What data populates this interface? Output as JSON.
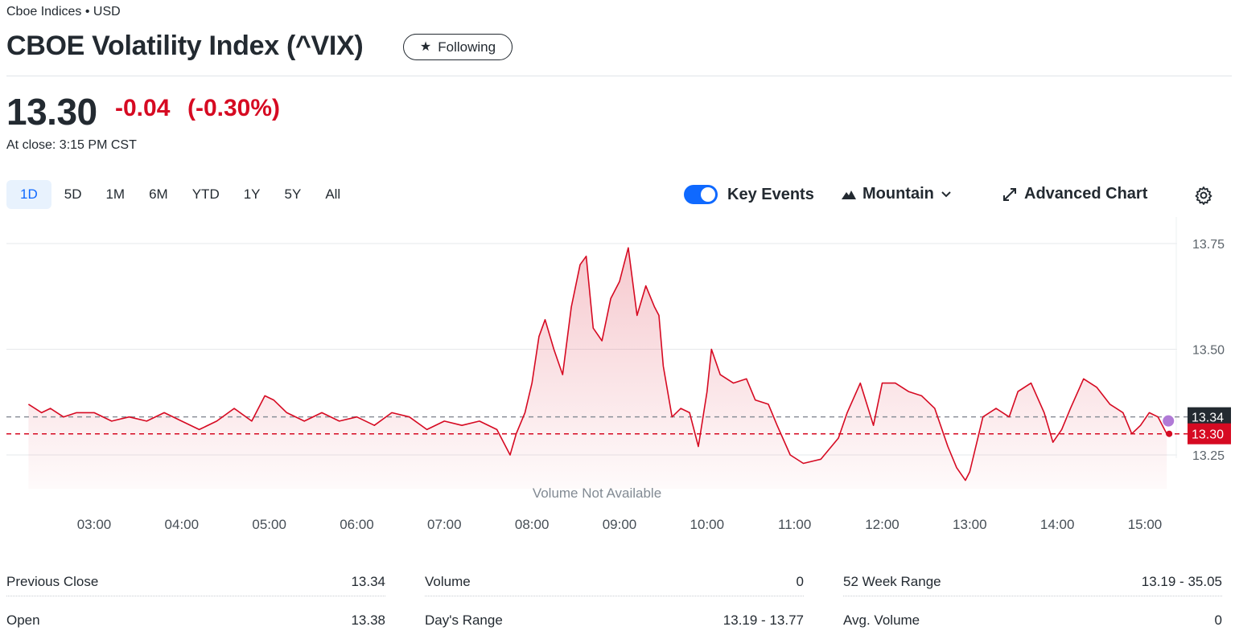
{
  "header": {
    "exchange": "Cboe Indices • USD",
    "title": "CBOE Volatility Index (^VIX)",
    "follow_label": "Following"
  },
  "quote": {
    "price": "13.30",
    "change": "-0.04",
    "change_pct": "(-0.30%)",
    "close_time": "At close: 3:15 PM CST"
  },
  "range_tabs": [
    "1D",
    "5D",
    "1M",
    "6M",
    "YTD",
    "1Y",
    "5Y",
    "All"
  ],
  "active_range": "1D",
  "controls": {
    "key_events": "Key Events",
    "key_events_on": true,
    "chart_type": "Mountain",
    "advanced_chart": "Advanced Chart"
  },
  "colors": {
    "down": "#d60a22",
    "line": "#d60a22",
    "accent": "#0f69ff",
    "prev_close_line": "#8a8f98",
    "event_dot": "#b07ad6"
  },
  "chart_data": {
    "type": "area",
    "x_ticks": [
      "03:00",
      "04:00",
      "05:00",
      "06:00",
      "07:00",
      "08:00",
      "09:00",
      "10:00",
      "11:00",
      "12:00",
      "13:00",
      "14:00",
      "15:00"
    ],
    "y_ticks": [
      "13.25",
      "13.50",
      "13.75"
    ],
    "ylim": [
      13.15,
      13.77
    ],
    "previous_close": 13.34,
    "previous_close_label": "13.34",
    "last_price": 13.3,
    "last_label": "13.30",
    "volume_note": "Volume Not Available",
    "x_hours": [
      2.25,
      15.25
    ],
    "series": [
      {
        "x": [
          2.25,
          2.4,
          2.5,
          2.65,
          2.8,
          3.0,
          3.2,
          3.4,
          3.6,
          3.8,
          4.0,
          4.2,
          4.4,
          4.6,
          4.8,
          4.95,
          5.05,
          5.2,
          5.4,
          5.6,
          5.8,
          6.0,
          6.2,
          6.4,
          6.6,
          6.8,
          7.0,
          7.2,
          7.4,
          7.6,
          7.75,
          7.82,
          7.92,
          8.0,
          8.08,
          8.15,
          8.25,
          8.35,
          8.45,
          8.55,
          8.62,
          8.7,
          8.8,
          8.9,
          9.0,
          9.05,
          9.1,
          9.2,
          9.3,
          9.4,
          9.45,
          9.5,
          9.6,
          9.7,
          9.8,
          9.9,
          10.0,
          10.05,
          10.15,
          10.3,
          10.45,
          10.55,
          10.7,
          10.8,
          10.95,
          11.1,
          11.3,
          11.5,
          11.6,
          11.75,
          11.9,
          12.0,
          12.15,
          12.3,
          12.45,
          12.6,
          12.75,
          12.85,
          12.95,
          13.0,
          13.15,
          13.3,
          13.45,
          13.55,
          13.7,
          13.85,
          13.95,
          14.05,
          14.15,
          14.3,
          14.45,
          14.6,
          14.75,
          14.85,
          14.95,
          15.05,
          15.15,
          15.25
        ],
        "y": [
          13.37,
          13.35,
          13.36,
          13.34,
          13.35,
          13.35,
          13.33,
          13.34,
          13.33,
          13.35,
          13.33,
          13.31,
          13.33,
          13.36,
          13.33,
          13.39,
          13.38,
          13.35,
          13.33,
          13.35,
          13.33,
          13.34,
          13.32,
          13.35,
          13.34,
          13.31,
          13.33,
          13.32,
          13.33,
          13.31,
          13.25,
          13.3,
          13.35,
          13.42,
          13.53,
          13.57,
          13.5,
          13.44,
          13.6,
          13.7,
          13.72,
          13.55,
          13.52,
          13.62,
          13.66,
          13.7,
          13.74,
          13.58,
          13.65,
          13.6,
          13.58,
          13.46,
          13.34,
          13.36,
          13.35,
          13.27,
          13.4,
          13.5,
          13.44,
          13.42,
          13.43,
          13.38,
          13.37,
          13.32,
          13.25,
          13.23,
          13.24,
          13.29,
          13.35,
          13.42,
          13.32,
          13.42,
          13.42,
          13.4,
          13.39,
          13.36,
          13.27,
          13.22,
          13.19,
          13.21,
          13.34,
          13.36,
          13.34,
          13.4,
          13.42,
          13.35,
          13.28,
          13.31,
          13.36,
          13.43,
          13.41,
          13.37,
          13.35,
          13.3,
          13.32,
          13.35,
          13.34,
          13.3
        ]
      }
    ]
  },
  "stats": [
    [
      {
        "label": "Previous Close",
        "value": "13.34"
      },
      {
        "label": "Open",
        "value": "13.38"
      }
    ],
    [
      {
        "label": "Volume",
        "value": "0"
      },
      {
        "label": "Day's Range",
        "value": "13.19 - 13.77"
      }
    ],
    [
      {
        "label": "52 Week Range",
        "value": "13.19 - 35.05"
      },
      {
        "label": "Avg. Volume",
        "value": "0"
      }
    ]
  ]
}
